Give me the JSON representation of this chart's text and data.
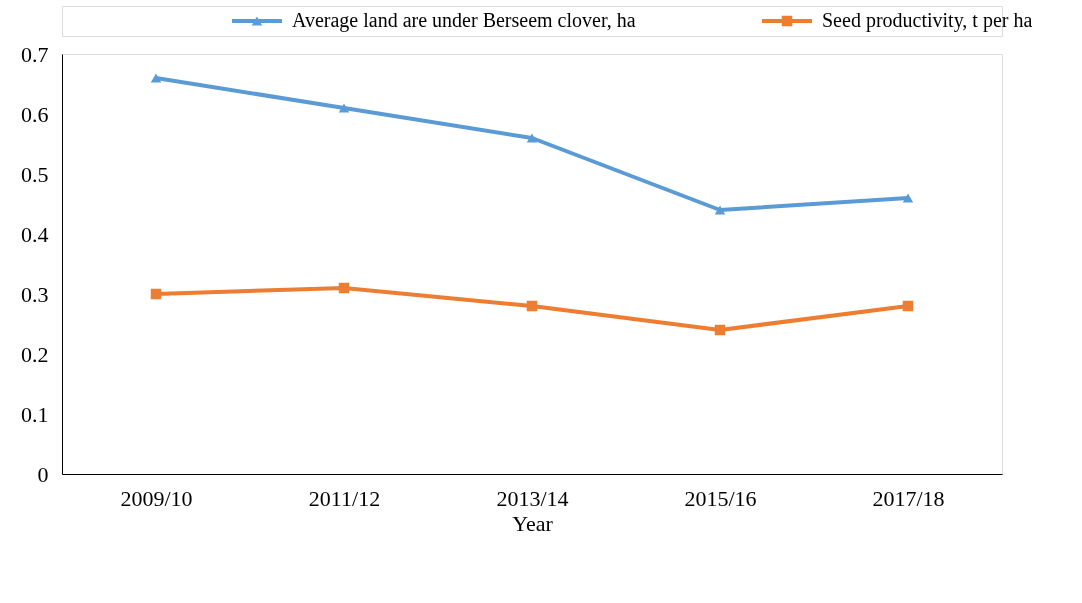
{
  "chart_data": {
    "type": "line",
    "xlabel": "Year",
    "categories": [
      "2009/10",
      "2011/12",
      "2013/14",
      "2015/16",
      "2017/18"
    ],
    "series": [
      {
        "name": "Average  land are under Berseem clover, ha",
        "color": "#5b9bd5",
        "marker": "triangle",
        "values": [
          0.66,
          0.61,
          0.56,
          0.44,
          0.46
        ]
      },
      {
        "name": "Seed productivity, t per ha",
        "color": "#ed7d31",
        "marker": "square",
        "values": [
          0.3,
          0.31,
          0.28,
          0.24,
          0.28
        ]
      }
    ],
    "ylim": [
      0,
      0.7
    ],
    "yticks": [
      0,
      0.1,
      0.2,
      0.3,
      0.4,
      0.5,
      0.6,
      0.7
    ],
    "grid": false,
    "legend": "top",
    "line_style": "solid"
  }
}
